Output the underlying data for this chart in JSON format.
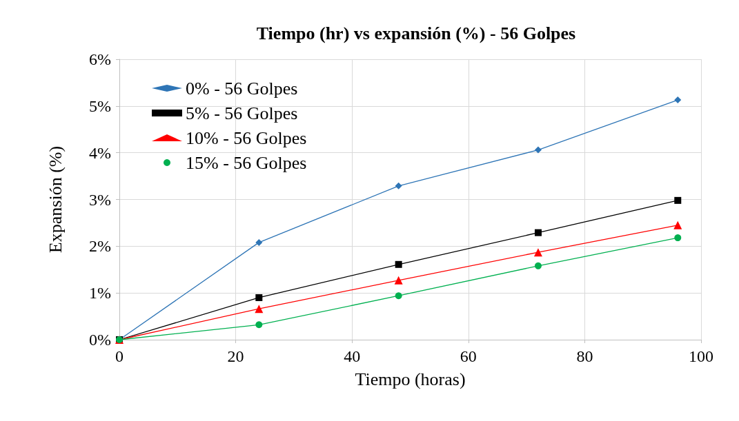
{
  "chart_data": {
    "type": "line",
    "title": "Tiempo (hr) vs expansión (%) - 56 Golpes",
    "xlabel": "Tiempo (horas)",
    "ylabel": "Expansión (%)",
    "x": [
      0,
      24,
      48,
      72,
      96
    ],
    "series": [
      {
        "name": "0% - 56 Golpes",
        "color": "#2e75b6",
        "marker": "diamond",
        "values": [
          0,
          2.08,
          3.29,
          4.06,
          5.13
        ]
      },
      {
        "name": "5% - 56 Golpes",
        "color": "#000000",
        "marker": "square",
        "values": [
          0,
          0.9,
          1.61,
          2.29,
          2.98
        ]
      },
      {
        "name": "10% - 56 Golpes",
        "color": "#ff0000",
        "marker": "triangle",
        "values": [
          0,
          0.66,
          1.27,
          1.87,
          2.45
        ]
      },
      {
        "name": "15% - 56 Golpes",
        "color": "#00b050",
        "marker": "circle",
        "values": [
          0,
          0.32,
          0.94,
          1.58,
          2.18
        ]
      }
    ],
    "xlim": [
      0,
      100
    ],
    "xticks": [
      0,
      20,
      40,
      60,
      80,
      100
    ],
    "ylim": [
      0,
      6
    ],
    "yticks": [
      {
        "value": 0,
        "label": "0%"
      },
      {
        "value": 1,
        "label": "1%"
      },
      {
        "value": 2,
        "label": "2%"
      },
      {
        "value": 3,
        "label": "3%"
      },
      {
        "value": 4,
        "label": "4%"
      },
      {
        "value": 5,
        "label": "5%"
      },
      {
        "value": 6,
        "label": "6%"
      }
    ],
    "grid": true,
    "legend": "top left",
    "line_style": "solid"
  }
}
